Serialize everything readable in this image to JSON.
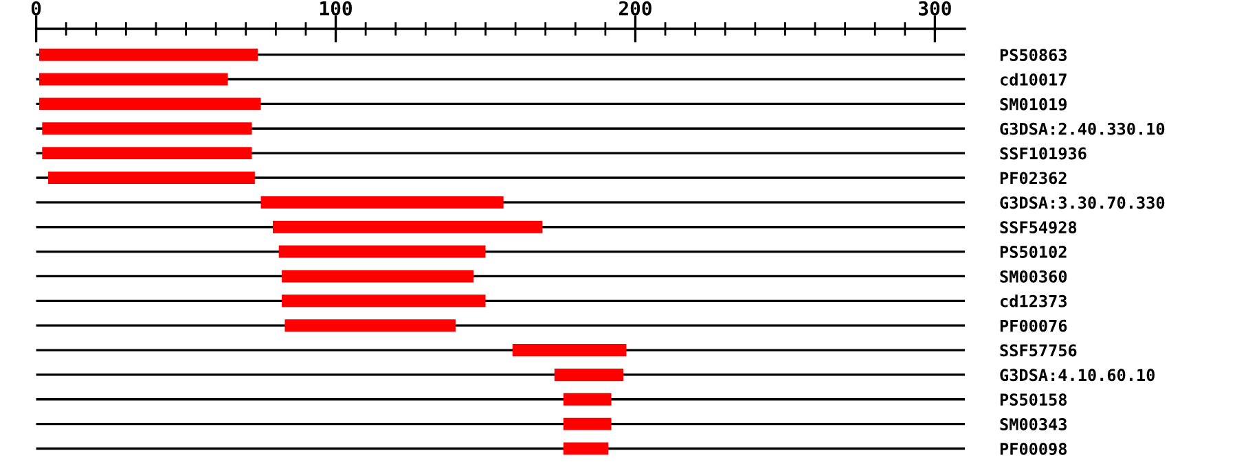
{
  "chart_data": {
    "type": "bar",
    "orientation": "horizontal",
    "categories": [
      "PS50863",
      "cd10017",
      "SM01019",
      "G3DSA:2.40.330.10",
      "SSF101936",
      "PF02362",
      "G3DSA:3.30.70.330",
      "SSF54928",
      "PS50102",
      "SM00360",
      "cd12373",
      "PF00076",
      "SSF57756",
      "G3DSA:4.10.60.10",
      "PS50158",
      "SM00343",
      "PF00098"
    ],
    "base": [
      1,
      1,
      1,
      2,
      2,
      4,
      75,
      79,
      81,
      82,
      82,
      83,
      159,
      173,
      176,
      176,
      176
    ],
    "values": [
      73,
      63,
      74,
      70,
      70,
      69,
      81,
      90,
      69,
      64,
      68,
      57,
      38,
      23,
      16,
      16,
      15
    ],
    "color": "#ff0000",
    "xlim": [
      0,
      310
    ],
    "xticks": [
      0,
      {
        "value": 10,
        "label": null
      },
      {
        "value": 20,
        "label": null
      },
      {
        "value": 30,
        "label": null
      },
      {
        "value": 40,
        "label": null
      },
      {
        "value": 50,
        "label": null
      },
      {
        "value": 60,
        "label": null
      },
      {
        "value": 70,
        "label": null
      },
      {
        "value": 80,
        "label": null
      },
      {
        "value": 90,
        "label": null
      },
      100,
      {
        "value": 110,
        "label": null
      },
      {
        "value": 120,
        "label": null
      },
      {
        "value": 130,
        "label": null
      },
      {
        "value": 140,
        "label": null
      },
      {
        "value": 150,
        "label": null
      },
      {
        "value": 160,
        "label": null
      },
      {
        "value": 170,
        "label": null
      },
      {
        "value": 180,
        "label": null
      },
      {
        "value": 190,
        "label": null
      },
      200,
      {
        "value": 210,
        "label": null
      },
      {
        "value": 220,
        "label": null
      },
      {
        "value": 230,
        "label": null
      },
      {
        "value": 240,
        "label": null
      },
      {
        "value": 250,
        "label": null
      },
      {
        "value": 260,
        "label": null
      },
      {
        "value": 270,
        "label": null
      },
      {
        "value": 280,
        "label": null
      },
      {
        "value": 290,
        "label": null
      },
      300
    ],
    "grid": "y"
  }
}
